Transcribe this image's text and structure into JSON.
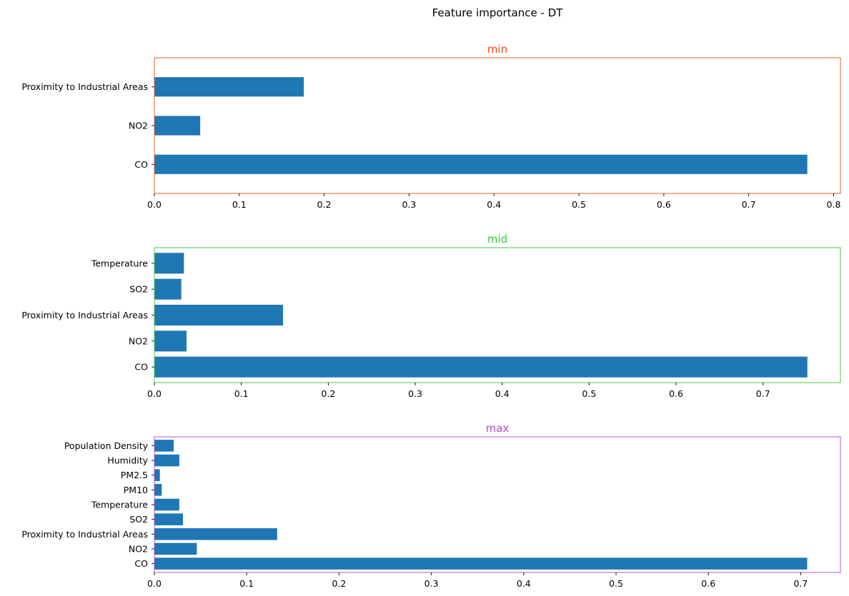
{
  "figure": {
    "title": "Feature importance - DT"
  },
  "chart_data": [
    {
      "type": "bar",
      "orientation": "horizontal",
      "title": "min",
      "title_color": "#ff3d0a",
      "frame_color": "#e0602a",
      "bar_color": "#1f77b4",
      "categories": [
        "CO",
        "NO2",
        "Proximity to Industrial Areas"
      ],
      "values": [
        0.769,
        0.054,
        0.176
      ],
      "xlim": [
        0,
        0.808
      ],
      "xticks": [
        0.0,
        0.1,
        0.2,
        0.3,
        0.4,
        0.5,
        0.6,
        0.7,
        0.8
      ],
      "xtick_labels": [
        "0.0",
        "0.1",
        "0.2",
        "0.3",
        "0.4",
        "0.5",
        "0.6",
        "0.7",
        "0.8"
      ],
      "grid": false
    },
    {
      "type": "bar",
      "orientation": "horizontal",
      "title": "mid",
      "title_color": "#33cc33",
      "frame_color": "#4cc34c",
      "bar_color": "#1f77b4",
      "categories": [
        "CO",
        "NO2",
        "Proximity to Industrial Areas",
        "SO2",
        "Temperature"
      ],
      "values": [
        0.751,
        0.037,
        0.148,
        0.031,
        0.034
      ],
      "xlim": [
        0,
        0.789
      ],
      "xticks": [
        0.0,
        0.1,
        0.2,
        0.3,
        0.4,
        0.5,
        0.6,
        0.7
      ],
      "xtick_labels": [
        "0.0",
        "0.1",
        "0.2",
        "0.3",
        "0.4",
        "0.5",
        "0.6",
        "0.7"
      ],
      "grid": false
    },
    {
      "type": "bar",
      "orientation": "horizontal",
      "title": "max",
      "title_color": "#bb44e0",
      "frame_color": "#b855dd",
      "bar_color": "#1f77b4",
      "categories": [
        "CO",
        "NO2",
        "Proximity to Industrial Areas",
        "SO2",
        "Temperature",
        "PM10",
        "PM2.5",
        "Humidity",
        "Population Density"
      ],
      "values": [
        0.707,
        0.046,
        0.133,
        0.031,
        0.027,
        0.008,
        0.006,
        0.027,
        0.021
      ],
      "xlim": [
        0,
        0.743
      ],
      "xticks": [
        0.0,
        0.1,
        0.2,
        0.3,
        0.4,
        0.5,
        0.6,
        0.7
      ],
      "xtick_labels": [
        "0.0",
        "0.1",
        "0.2",
        "0.3",
        "0.4",
        "0.5",
        "0.6",
        "0.7"
      ],
      "grid": false
    }
  ]
}
